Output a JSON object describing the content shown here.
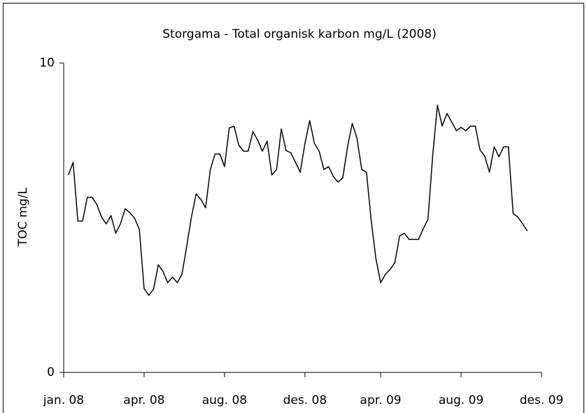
{
  "chart_data": {
    "type": "line",
    "title": "Storgama - Total organisk karbon mg/L (2008)",
    "y_label": "TOC mg/L",
    "categories": [
      "jan. 08",
      null,
      null,
      null,
      null,
      null,
      null,
      null,
      null,
      null,
      null,
      null,
      null,
      null,
      null,
      null,
      null,
      "apr. 08",
      null,
      null,
      null,
      null,
      null,
      null,
      null,
      null,
      null,
      null,
      null,
      null,
      null,
      null,
      null,
      null,
      "aug. 08",
      null,
      null,
      null,
      null,
      null,
      null,
      null,
      null,
      null,
      null,
      null,
      null,
      null,
      null,
      null,
      null,
      "des. 08",
      null,
      null,
      null,
      null,
      null,
      null,
      null,
      null,
      null,
      null,
      null,
      null,
      null,
      null,
      null,
      "apr. 09",
      null,
      null,
      null,
      null,
      null,
      null,
      null,
      null,
      null,
      null,
      null,
      null,
      null,
      null,
      null,
      null,
      "aug. 09",
      null,
      null,
      null,
      null,
      null,
      null,
      null,
      null,
      null,
      null,
      null,
      null,
      null,
      null,
      null,
      null,
      "des. 09"
    ],
    "values": [
      null,
      6.38,
      6.79,
      4.89,
      4.89,
      5.66,
      5.66,
      5.43,
      5.02,
      4.8,
      5.07,
      4.5,
      4.8,
      5.29,
      5.16,
      4.98,
      4.62,
      2.71,
      2.49,
      2.69,
      3.48,
      3.26,
      2.9,
      3.08,
      2.9,
      3.17,
      4.07,
      5.02,
      5.77,
      5.59,
      5.32,
      6.56,
      7.06,
      7.06,
      6.65,
      7.9,
      7.96,
      7.35,
      7.15,
      7.15,
      7.78,
      7.51,
      7.15,
      7.47,
      6.38,
      6.56,
      7.87,
      7.17,
      7.1,
      6.79,
      6.47,
      7.4,
      8.14,
      7.4,
      7.15,
      6.56,
      6.65,
      6.33,
      6.15,
      6.29,
      7.29,
      8.05,
      7.56,
      6.56,
      6.47,
      4.91,
      3.67,
      2.9,
      3.17,
      3.33,
      3.55,
      4.41,
      4.5,
      4.3,
      4.3,
      4.3,
      4.64,
      4.95,
      7.01,
      8.64,
      7.96,
      8.37,
      8.1,
      7.81,
      7.92,
      7.81,
      7.96,
      7.96,
      7.19,
      6.99,
      6.47,
      7.29,
      6.97,
      7.29,
      7.29,
      5.14,
      5.02,
      4.8,
      4.57,
      null,
      null,
      null
    ],
    "color": "#000000",
    "ylim": [
      0,
      10
    ],
    "yticks": [
      0,
      10
    ],
    "grid": false
  }
}
